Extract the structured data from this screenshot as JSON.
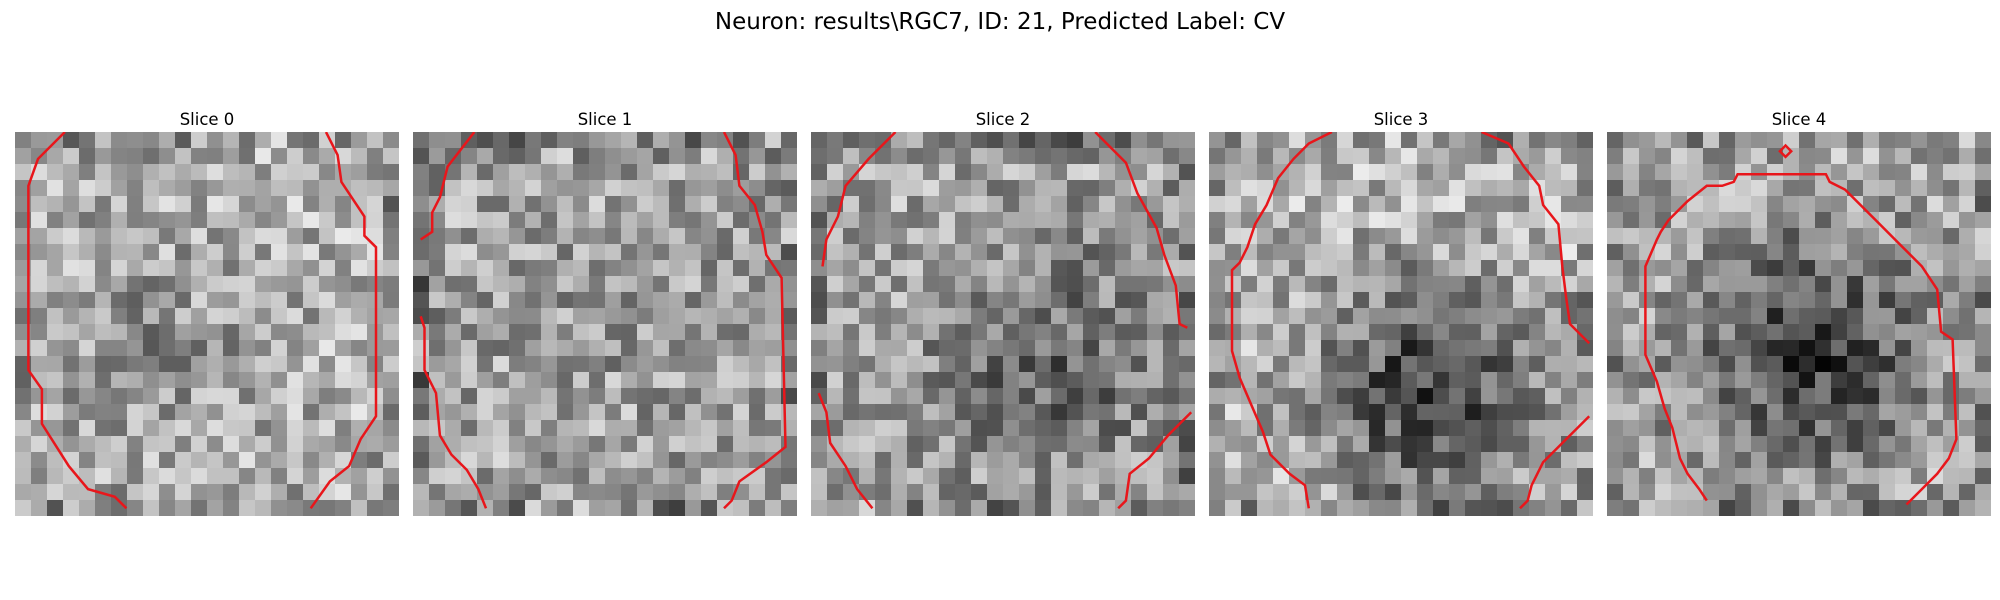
{
  "figure": {
    "title": "Neuron: results\\RGC7, ID: 21, Predicted Label: CV",
    "contour_color": "#e8161b",
    "panels": [
      {
        "title": "Slice 0",
        "seed": 11,
        "base": 175,
        "dark": [
          0.36,
          0.58,
          0.2,
          28
        ],
        "contours": [
          [
            [
              0.13,
              0.0
            ],
            [
              0.06,
              0.07
            ],
            [
              0.035,
              0.14
            ],
            [
              0.035,
              0.62
            ],
            [
              0.07,
              0.67
            ],
            [
              0.07,
              0.76
            ],
            [
              0.14,
              0.87
            ],
            [
              0.19,
              0.93
            ],
            [
              0.26,
              0.95
            ],
            [
              0.29,
              0.98
            ]
          ],
          [
            [
              0.81,
              0.0
            ],
            [
              0.84,
              0.06
            ],
            [
              0.85,
              0.13
            ],
            [
              0.91,
              0.22
            ],
            [
              0.91,
              0.27
            ],
            [
              0.94,
              0.3
            ],
            [
              0.94,
              0.74
            ],
            [
              0.9,
              0.8
            ],
            [
              0.87,
              0.87
            ],
            [
              0.82,
              0.91
            ],
            [
              0.77,
              0.98
            ]
          ]
        ]
      },
      {
        "title": "Slice 1",
        "seed": 23,
        "base": 162,
        "dark": [
          0.5,
          0.5,
          0.15,
          10
        ],
        "contours": [
          [
            [
              0.16,
              0.0
            ],
            [
              0.09,
              0.09
            ],
            [
              0.07,
              0.17
            ],
            [
              0.05,
              0.21
            ],
            [
              0.05,
              0.26
            ],
            [
              0.02,
              0.28
            ]
          ],
          [
            [
              0.02,
              0.48
            ],
            [
              0.03,
              0.51
            ],
            [
              0.03,
              0.62
            ],
            [
              0.06,
              0.68
            ],
            [
              0.07,
              0.79
            ],
            [
              0.1,
              0.84
            ],
            [
              0.14,
              0.88
            ],
            [
              0.17,
              0.93
            ],
            [
              0.19,
              0.98
            ]
          ],
          [
            [
              0.81,
              0.0
            ],
            [
              0.84,
              0.06
            ],
            [
              0.85,
              0.14
            ],
            [
              0.89,
              0.19
            ],
            [
              0.91,
              0.26
            ],
            [
              0.92,
              0.32
            ],
            [
              0.96,
              0.38
            ],
            [
              0.97,
              0.82
            ],
            [
              0.92,
              0.86
            ],
            [
              0.85,
              0.91
            ],
            [
              0.83,
              0.96
            ],
            [
              0.81,
              0.98
            ]
          ]
        ]
      },
      {
        "title": "Slice 2",
        "seed": 37,
        "base": 165,
        "dark": [
          0.62,
          0.6,
          0.22,
          62
        ],
        "contours": [
          [
            [
              0.22,
              0.0
            ],
            [
              0.15,
              0.07
            ],
            [
              0.09,
              0.14
            ],
            [
              0.07,
              0.22
            ],
            [
              0.04,
              0.28
            ],
            [
              0.03,
              0.35
            ]
          ],
          [
            [
              0.02,
              0.68
            ],
            [
              0.04,
              0.73
            ],
            [
              0.05,
              0.81
            ],
            [
              0.09,
              0.87
            ],
            [
              0.12,
              0.93
            ],
            [
              0.16,
              0.98
            ]
          ],
          [
            [
              0.74,
              0.0
            ],
            [
              0.82,
              0.08
            ],
            [
              0.85,
              0.16
            ],
            [
              0.9,
              0.25
            ],
            [
              0.92,
              0.32
            ],
            [
              0.95,
              0.4
            ],
            [
              0.96,
              0.5
            ],
            [
              0.98,
              0.51
            ]
          ],
          [
            [
              0.99,
              0.73
            ],
            [
              0.93,
              0.79
            ],
            [
              0.88,
              0.85
            ],
            [
              0.83,
              0.89
            ],
            [
              0.82,
              0.96
            ],
            [
              0.8,
              0.98
            ]
          ]
        ]
      },
      {
        "title": "Slice 3",
        "seed": 53,
        "base": 182,
        "dark": [
          0.57,
          0.67,
          0.2,
          120
        ],
        "contours": [
          [
            [
              0.32,
              0.0
            ],
            [
              0.26,
              0.03
            ],
            [
              0.22,
              0.07
            ],
            [
              0.18,
              0.12
            ],
            [
              0.15,
              0.19
            ],
            [
              0.12,
              0.24
            ],
            [
              0.1,
              0.3
            ],
            [
              0.08,
              0.34
            ],
            [
              0.06,
              0.36
            ],
            [
              0.06,
              0.57
            ],
            [
              0.08,
              0.64
            ],
            [
              0.11,
              0.71
            ],
            [
              0.14,
              0.78
            ],
            [
              0.16,
              0.84
            ],
            [
              0.21,
              0.89
            ],
            [
              0.25,
              0.92
            ],
            [
              0.26,
              0.98
            ]
          ],
          [
            [
              0.71,
              0.0
            ],
            [
              0.78,
              0.03
            ],
            [
              0.82,
              0.09
            ],
            [
              0.86,
              0.14
            ],
            [
              0.87,
              0.19
            ],
            [
              0.91,
              0.24
            ],
            [
              0.92,
              0.35
            ],
            [
              0.93,
              0.43
            ],
            [
              0.94,
              0.5
            ],
            [
              0.99,
              0.55
            ]
          ],
          [
            [
              0.99,
              0.74
            ],
            [
              0.93,
              0.8
            ],
            [
              0.87,
              0.86
            ],
            [
              0.84,
              0.92
            ],
            [
              0.83,
              0.96
            ],
            [
              0.81,
              0.98
            ]
          ]
        ]
      },
      {
        "title": "Slice 4",
        "seed": 71,
        "base": 168,
        "dark": [
          0.52,
          0.58,
          0.2,
          110
        ],
        "contours": [
          [
            [
              0.26,
              0.96
            ],
            [
              0.24,
              0.93
            ],
            [
              0.21,
              0.89
            ],
            [
              0.19,
              0.85
            ],
            [
              0.17,
              0.77
            ],
            [
              0.15,
              0.72
            ],
            [
              0.13,
              0.65
            ],
            [
              0.1,
              0.58
            ],
            [
              0.1,
              0.35
            ],
            [
              0.13,
              0.28
            ],
            [
              0.14,
              0.26
            ],
            [
              0.16,
              0.23
            ],
            [
              0.21,
              0.18
            ],
            [
              0.26,
              0.14
            ],
            [
              0.3,
              0.14
            ],
            [
              0.33,
              0.13
            ],
            [
              0.34,
              0.11
            ],
            [
              0.57,
              0.11
            ],
            [
              0.58,
              0.13
            ],
            [
              0.62,
              0.15
            ],
            [
              0.7,
              0.23
            ],
            [
              0.77,
              0.3
            ],
            [
              0.82,
              0.35
            ],
            [
              0.86,
              0.41
            ],
            [
              0.87,
              0.52
            ],
            [
              0.9,
              0.54
            ],
            [
              0.91,
              0.8
            ],
            [
              0.89,
              0.85
            ],
            [
              0.86,
              0.89
            ],
            [
              0.82,
              0.93
            ],
            [
              0.78,
              0.97
            ]
          ]
        ],
        "marker": [
          0.465,
          0.05
        ]
      }
    ]
  }
}
